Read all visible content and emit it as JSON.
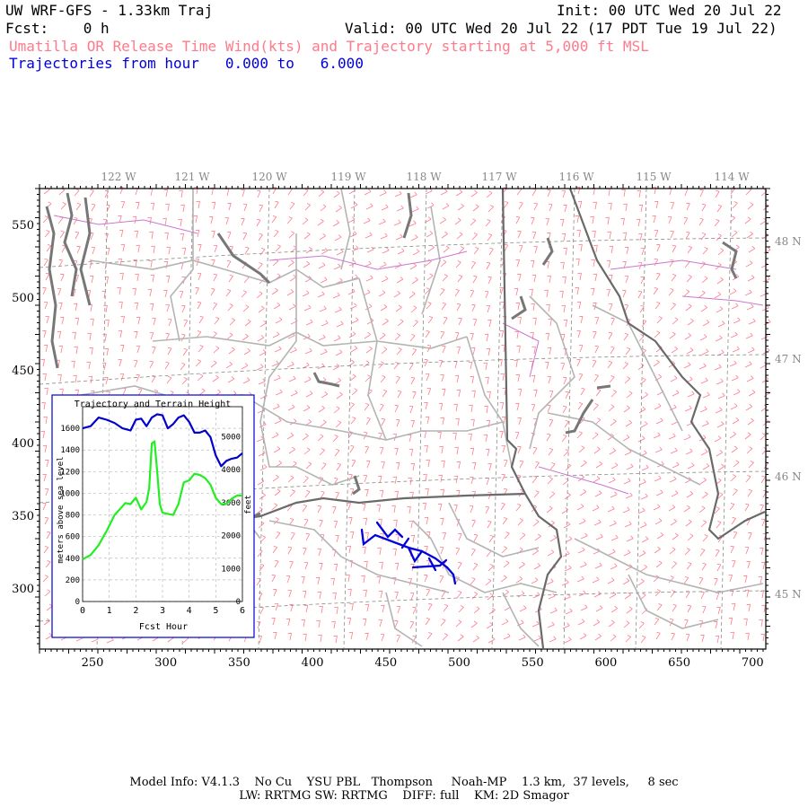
{
  "header": {
    "model_title": "UW WRF-GFS - 1.33km Traj",
    "init": "Init: 00 UTC Wed 20 Jul 22",
    "fcst": "Fcst:    0 h",
    "valid": "Valid: 00 UTC Wed 20 Jul 22 (17 PDT Tue 19 Jul 22)",
    "product": "Umatilla OR Release Time Wind(kts) and Trajectory starting at 5,000 ft MSL",
    "traj_hours": "Trajectories from hour   0.000 to   6.000"
  },
  "map": {
    "lon_labels": [
      "122 W",
      "121 W",
      "120 W",
      "119 W",
      "118 W",
      "117 W",
      "116 W",
      "115 W",
      "114 W"
    ],
    "lat_labels": [
      "48 N",
      "47 N",
      "46 N",
      "45 N"
    ],
    "x_ticks": [
      "250",
      "300",
      "350",
      "400",
      "450",
      "500",
      "550",
      "600",
      "650",
      "700"
    ],
    "y_ticks": [
      "550",
      "500",
      "450",
      "400",
      "350",
      "300"
    ],
    "colors": {
      "wind_barbs": "#ff7a8a",
      "trajectory": "#0000dd",
      "state_border": "#666666",
      "county_border": "#b0b0b0",
      "water": "#777777",
      "roads": "#cc66cc",
      "grid": "#888888"
    }
  },
  "inset": {
    "title": "Trajectory and Terrain Height",
    "ylabel_left": "meters above sea level",
    "ylabel_right": "feet",
    "xlabel": "Fcst Hour",
    "x_ticks": [
      "0",
      "1",
      "2",
      "3",
      "4",
      "5",
      "6"
    ],
    "y_left_ticks": [
      "0",
      "200",
      "400",
      "600",
      "800",
      "1000",
      "1200",
      "1400",
      "1600"
    ],
    "y_right_ticks": [
      "0",
      "1000",
      "2000",
      "3000",
      "4000",
      "5000"
    ],
    "colors": {
      "trajectory": "#0000cc",
      "terrain": "#22ee22",
      "frame": "#0000cc"
    }
  },
  "chart_data": {
    "type": "line",
    "title": "Trajectory and Terrain Height",
    "xlabel": "Fcst Hour",
    "ylabel": "meters above sea level",
    "ylabel_right": "feet",
    "xlim": [
      0,
      6
    ],
    "ylim": [
      0,
      1800
    ],
    "grid": true,
    "series": [
      {
        "x": [
          0,
          0.3,
          0.6,
          0.9,
          1.2,
          1.5,
          1.8,
          2.0,
          2.2,
          2.4,
          2.6,
          2.8,
          3.0,
          3.2,
          3.4,
          3.6,
          3.8,
          4.0,
          4.2,
          4.4,
          4.6,
          4.8,
          5.0,
          5.2,
          5.4,
          5.6,
          5.8,
          6.0
        ],
        "values": [
          1600,
          1620,
          1700,
          1680,
          1650,
          1600,
          1580,
          1680,
          1690,
          1620,
          1700,
          1730,
          1720,
          1600,
          1640,
          1700,
          1720,
          1660,
          1560,
          1560,
          1580,
          1520,
          1350,
          1250,
          1300,
          1320,
          1330,
          1370
        ]
      },
      {
        "x": [
          0,
          0.3,
          0.6,
          0.9,
          1.2,
          1.5,
          1.6,
          1.8,
          2.0,
          2.2,
          2.4,
          2.5,
          2.6,
          2.7,
          2.8,
          2.9,
          3.0,
          3.2,
          3.4,
          3.6,
          3.8,
          4.0,
          4.2,
          4.4,
          4.6,
          4.8,
          5.0,
          5.2,
          5.4,
          5.6,
          5.8,
          6.0
        ],
        "values": [
          390,
          430,
          520,
          650,
          800,
          880,
          910,
          900,
          960,
          850,
          920,
          1050,
          1460,
          1480,
          1200,
          900,
          820,
          810,
          800,
          900,
          1100,
          1120,
          1180,
          1170,
          1140,
          1080,
          960,
          900,
          900,
          950,
          980,
          980
        ]
      }
    ]
  },
  "footer": {
    "line1": "Model Info: V4.1.3    No Cu    YSU PBL   Thompson     Noah-MP    1.3 km,  37 levels,     8 sec",
    "line2": "LW: RRTMG SW: RRTMG    DIFF: full    KM: 2D Smagor"
  }
}
